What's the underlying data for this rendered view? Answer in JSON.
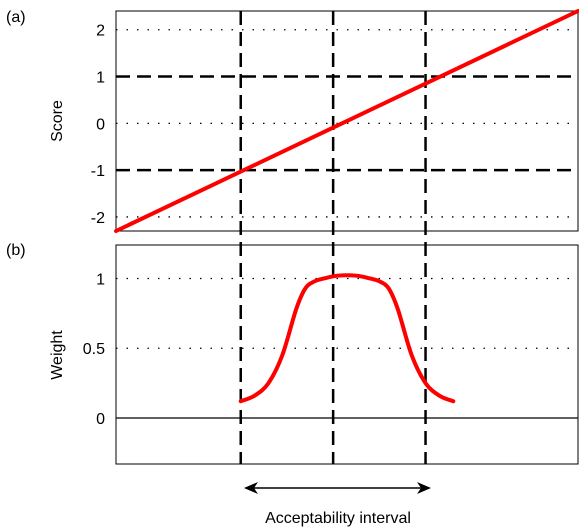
{
  "chart_data": [
    {
      "panel_label": "(a)",
      "type": "line",
      "title": "",
      "xlabel": "",
      "ylabel": "Score",
      "ylim": [
        -2.3,
        2.4
      ],
      "yticks": [
        2,
        1,
        0,
        -1,
        -2
      ],
      "ytick_labels": [
        "2",
        "1",
        "0",
        "-1",
        "-2"
      ],
      "xlim": [
        0,
        1
      ],
      "dashed_h_lines": [
        1,
        -1
      ],
      "dotted_h_lines": [
        2,
        0,
        -2
      ],
      "series": [
        {
          "color": "#ff0000",
          "x": [
            0,
            1
          ],
          "y": [
            -2.3,
            2.4
          ]
        }
      ]
    },
    {
      "panel_label": "(b)",
      "type": "line",
      "title": "",
      "xlabel": "",
      "ylabel": "Weight",
      "ylim": [
        -0.33,
        1.24
      ],
      "yticks": [
        1,
        0.5,
        0
      ],
      "ytick_labels": [
        "1",
        "0.5",
        "0"
      ],
      "xlim": [
        0,
        1
      ],
      "solid_h_lines": [
        0
      ],
      "dotted_h_lines": [
        1,
        0.5
      ],
      "series": [
        {
          "color": "#ff0000",
          "x": [
            0.27,
            0.3,
            0.33,
            0.36,
            0.39,
            0.41,
            0.43,
            0.45,
            0.48,
            0.52,
            0.55,
            0.57,
            0.59,
            0.61,
            0.64,
            0.67,
            0.7,
            0.73
          ],
          "y": [
            0.12,
            0.16,
            0.25,
            0.45,
            0.78,
            0.93,
            0.98,
            1.0,
            1.02,
            1.02,
            1.0,
            0.98,
            0.93,
            0.78,
            0.45,
            0.25,
            0.16,
            0.12
          ]
        }
      ]
    }
  ],
  "shared": {
    "vertical_dashed_x": [
      0.27,
      0.47,
      0.67
    ],
    "interval_label": "Acceptability interval",
    "line_color": "#ff0000"
  }
}
